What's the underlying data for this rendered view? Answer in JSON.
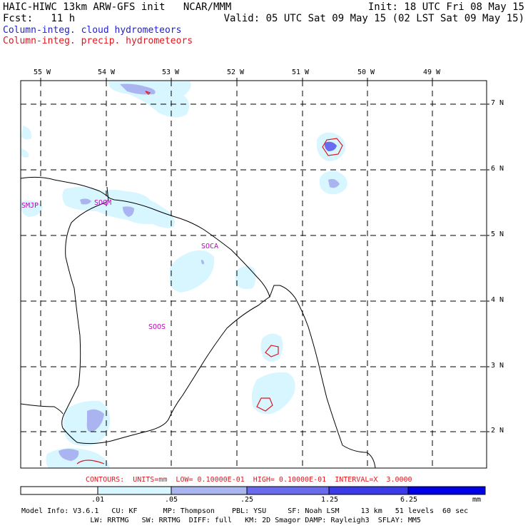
{
  "header": {
    "title_left": "HAIC-HIWC 13km ARW-GFS init   NCAR/MMM",
    "fcst": "Fcst:   11 h",
    "init": "Init: 18 UTC Fri 08 May 15",
    "valid": "Valid: 05 UTC Sat 09 May 15 (02 LST Sat 09 May 15)",
    "legend_cloud": "Column-integ. cloud hydrometeors",
    "legend_precip": "Column-integ. precip. hydrometeors"
  },
  "axes": {
    "lon_labels": [
      "55 W",
      "54 W",
      "53 W",
      "52 W",
      "51 W",
      "50 W",
      "49 W"
    ],
    "lat_labels": [
      "7 N",
      "6 N",
      "5 N",
      "4 N",
      "3 N",
      "2 N"
    ]
  },
  "stations": [
    "SMJP",
    "SOGM",
    "SOCA",
    "SOOS"
  ],
  "contours_info": "CONTOURS:  UNITS=mm  LOW= 0.10000E-01  HIGH= 0.10000E-01  INTERVAL=X  3.0000",
  "colorbar": {
    "ticks": [
      ".01",
      ".05",
      ".25",
      "1.25",
      "6.25"
    ],
    "units": "mm",
    "colors": [
      "#ffffff",
      "#d8f6ff",
      "#aab6f0",
      "#6a6cf0",
      "#3a3ae8",
      "#0000e8"
    ]
  },
  "model_info": {
    "line1": "Model Info: V3.6.1   CU: KF      MP: Thompson    PBL: YSU     SF: Noah LSM     13 km   51 levels  60 sec",
    "line2": "                LW: RRTMG   SW: RRTMG  DIFF: full   KM: 2D Smagor DAMP: Rayleigh3  SFLAY: MM5"
  }
}
